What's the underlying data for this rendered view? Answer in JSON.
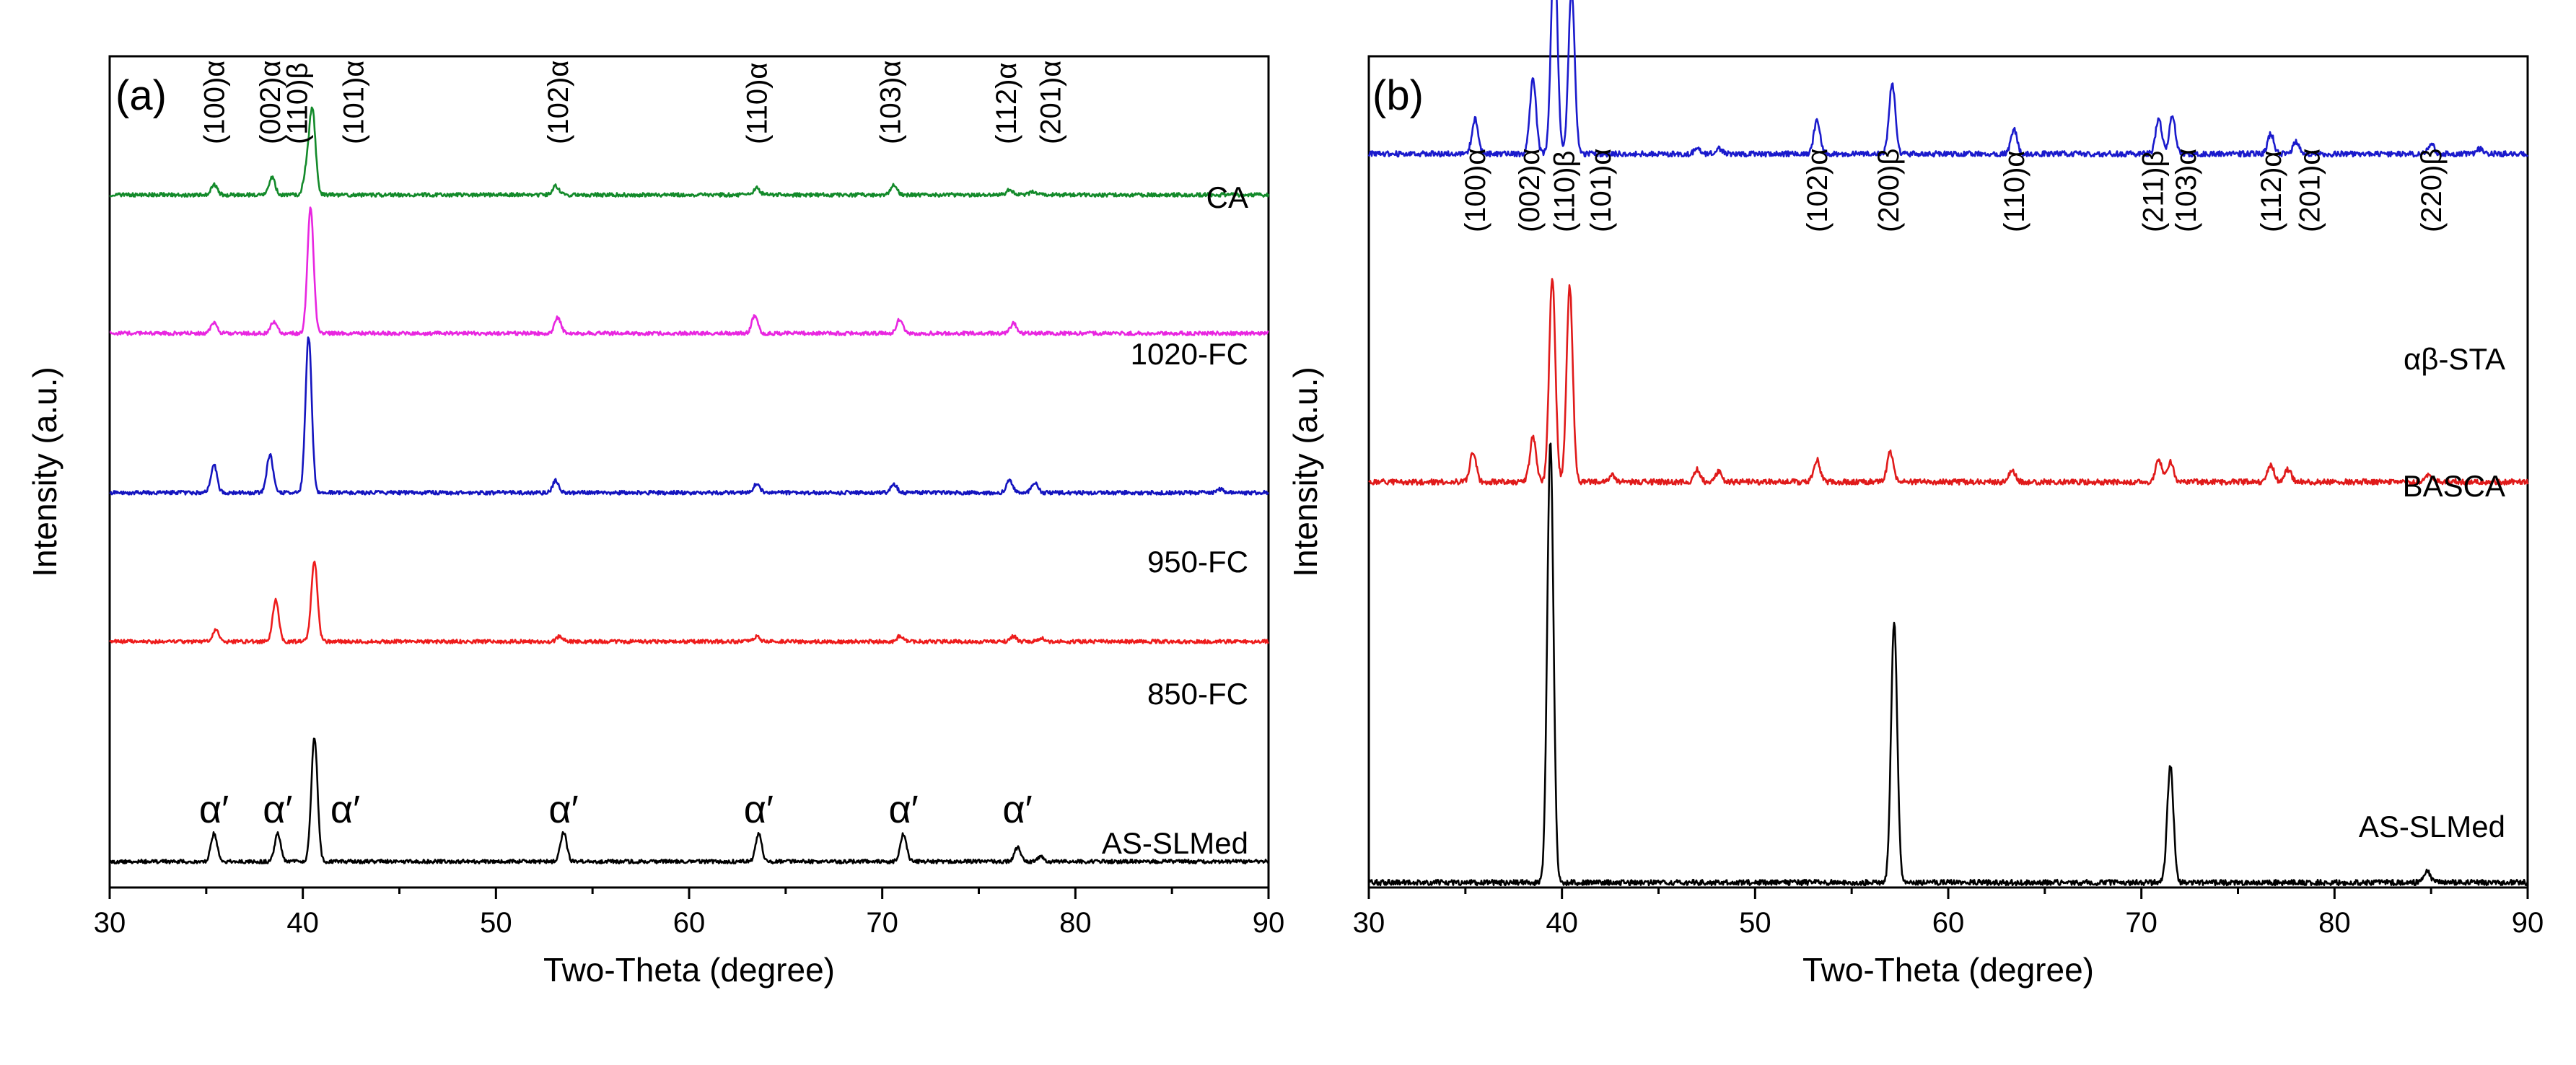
{
  "chart_data": [
    {
      "panel": "(a)",
      "type": "line",
      "xlabel": "Two-Theta (degree)",
      "ylabel": "Intensity (a.u.)",
      "xlim": [
        30,
        90
      ],
      "xticks": [
        30,
        40,
        50,
        60,
        70,
        80,
        90
      ],
      "series": [
        {
          "name": "CA",
          "color": "#138a2a",
          "offset": 4.0,
          "peaks": [
            [
              35.4,
              0.06
            ],
            [
              38.4,
              0.1
            ],
            [
              40.2,
              0.14
            ],
            [
              40.5,
              0.48
            ],
            [
              53.1,
              0.05
            ],
            [
              63.5,
              0.04
            ],
            [
              70.6,
              0.06
            ],
            [
              76.6,
              0.03
            ],
            [
              77.8,
              0.02
            ]
          ]
        },
        {
          "name": "1020-FC",
          "color": "#e826e0",
          "offset": 3.2,
          "peaks": [
            [
              35.4,
              0.06
            ],
            [
              38.5,
              0.07
            ],
            [
              40.4,
              0.72
            ],
            [
              53.2,
              0.09
            ],
            [
              63.4,
              0.1
            ],
            [
              70.9,
              0.08
            ],
            [
              76.8,
              0.06
            ]
          ]
        },
        {
          "name": "950-FC",
          "color": "#1414bf",
          "offset": 2.28,
          "peaks": [
            [
              35.4,
              0.16
            ],
            [
              38.3,
              0.22
            ],
            [
              40.3,
              0.9
            ],
            [
              53.1,
              0.07
            ],
            [
              63.5,
              0.05
            ],
            [
              70.6,
              0.05
            ],
            [
              76.6,
              0.07
            ],
            [
              77.9,
              0.06
            ],
            [
              87.5,
              0.02
            ]
          ]
        },
        {
          "name": "850-FC",
          "color": "#ee1c1c",
          "offset": 1.42,
          "peaks": [
            [
              35.5,
              0.07
            ],
            [
              38.6,
              0.24
            ],
            [
              40.6,
              0.46
            ],
            [
              53.3,
              0.03
            ],
            [
              63.5,
              0.03
            ],
            [
              70.9,
              0.03
            ],
            [
              76.8,
              0.03
            ],
            [
              78.2,
              0.02
            ]
          ]
        },
        {
          "name": "AS-SLMed",
          "color": "#000000",
          "offset": 0.15,
          "peaks": [
            [
              35.4,
              0.16
            ],
            [
              38.7,
              0.16
            ],
            [
              40.6,
              0.72
            ],
            [
              53.5,
              0.17
            ],
            [
              63.6,
              0.16
            ],
            [
              71.1,
              0.16
            ],
            [
              77.0,
              0.08
            ],
            [
              78.2,
              0.03
            ]
          ]
        }
      ],
      "peak_labels": [
        {
          "text": "(100)α",
          "x": 35.4
        },
        {
          "text": "(002)α",
          "x": 38.3
        },
        {
          "text": "(110)β",
          "x": 39.7
        },
        {
          "text": "(101)α",
          "x": 42.6
        },
        {
          "text": "(102)α",
          "x": 53.2
        },
        {
          "text": "(110)α",
          "x": 63.5
        },
        {
          "text": "(103)α",
          "x": 70.4
        },
        {
          "text": "(112)α",
          "x": 76.4
        },
        {
          "text": "(201)α",
          "x": 78.7
        }
      ],
      "phase_labels": [
        {
          "text": "α′",
          "x": 35.4
        },
        {
          "text": "α′",
          "x": 38.7
        },
        {
          "text": "α′",
          "x": 42.2
        },
        {
          "text": "α′",
          "x": 53.5
        },
        {
          "text": "α′",
          "x": 63.6
        },
        {
          "text": "α′",
          "x": 71.1
        },
        {
          "text": "α′",
          "x": 77.0
        }
      ]
    },
    {
      "panel": "(b)",
      "type": "line",
      "xlabel": "Two-Theta (degree)",
      "ylabel": "Intensity (a.u.)",
      "xlim": [
        30,
        90
      ],
      "xticks": [
        30,
        40,
        50,
        60,
        70,
        80,
        90
      ],
      "series": [
        {
          "name": "αβ-STA",
          "color": "#1a1acc",
          "offset": 2.93,
          "peaks": [
            [
              35.5,
              0.14
            ],
            [
              38.5,
              0.3
            ],
            [
              39.6,
              0.86
            ],
            [
              40.5,
              0.66
            ],
            [
              47.0,
              0.02
            ],
            [
              48.1,
              0.02
            ],
            [
              53.2,
              0.13
            ],
            [
              57.1,
              0.28
            ],
            [
              63.4,
              0.1
            ],
            [
              70.9,
              0.14
            ],
            [
              71.6,
              0.15
            ],
            [
              76.7,
              0.08
            ],
            [
              78.0,
              0.05
            ],
            [
              85.0,
              0.04
            ],
            [
              87.5,
              0.02
            ]
          ]
        },
        {
          "name": "BASCA",
          "color": "#e01a1a",
          "offset": 1.62,
          "peaks": [
            [
              35.4,
              0.12
            ],
            [
              38.5,
              0.18
            ],
            [
              39.5,
              0.82
            ],
            [
              40.4,
              0.78
            ],
            [
              42.6,
              0.03
            ],
            [
              47.0,
              0.05
            ],
            [
              48.1,
              0.04
            ],
            [
              53.2,
              0.09
            ],
            [
              57.0,
              0.12
            ],
            [
              63.3,
              0.05
            ],
            [
              70.9,
              0.09
            ],
            [
              71.5,
              0.08
            ],
            [
              76.7,
              0.07
            ],
            [
              77.6,
              0.05
            ],
            [
              84.9,
              0.03
            ]
          ]
        },
        {
          "name": "AS-SLMed",
          "color": "#000000",
          "offset": 0.02,
          "peaks": [
            [
              39.4,
              1.76
            ],
            [
              57.2,
              1.04
            ],
            [
              71.5,
              0.47
            ],
            [
              84.8,
              0.05
            ]
          ]
        }
      ],
      "peak_labels": [
        {
          "text": "(100)α",
          "x": 35.5
        },
        {
          "text": "(002)α",
          "x": 38.3
        },
        {
          "text": "(110)β",
          "x": 40.1
        },
        {
          "text": "(101)α",
          "x": 42.0
        },
        {
          "text": "(102)α",
          "x": 53.2
        },
        {
          "text": "(200)β",
          "x": 56.9
        },
        {
          "text": "(110)α",
          "x": 63.4
        },
        {
          "text": "(211)β",
          "x": 70.6
        },
        {
          "text": "(103)α",
          "x": 72.3
        },
        {
          "text": "(112)α",
          "x": 76.7
        },
        {
          "text": "(201)α",
          "x": 78.7
        },
        {
          "text": "(220)β",
          "x": 85.0
        }
      ]
    }
  ]
}
